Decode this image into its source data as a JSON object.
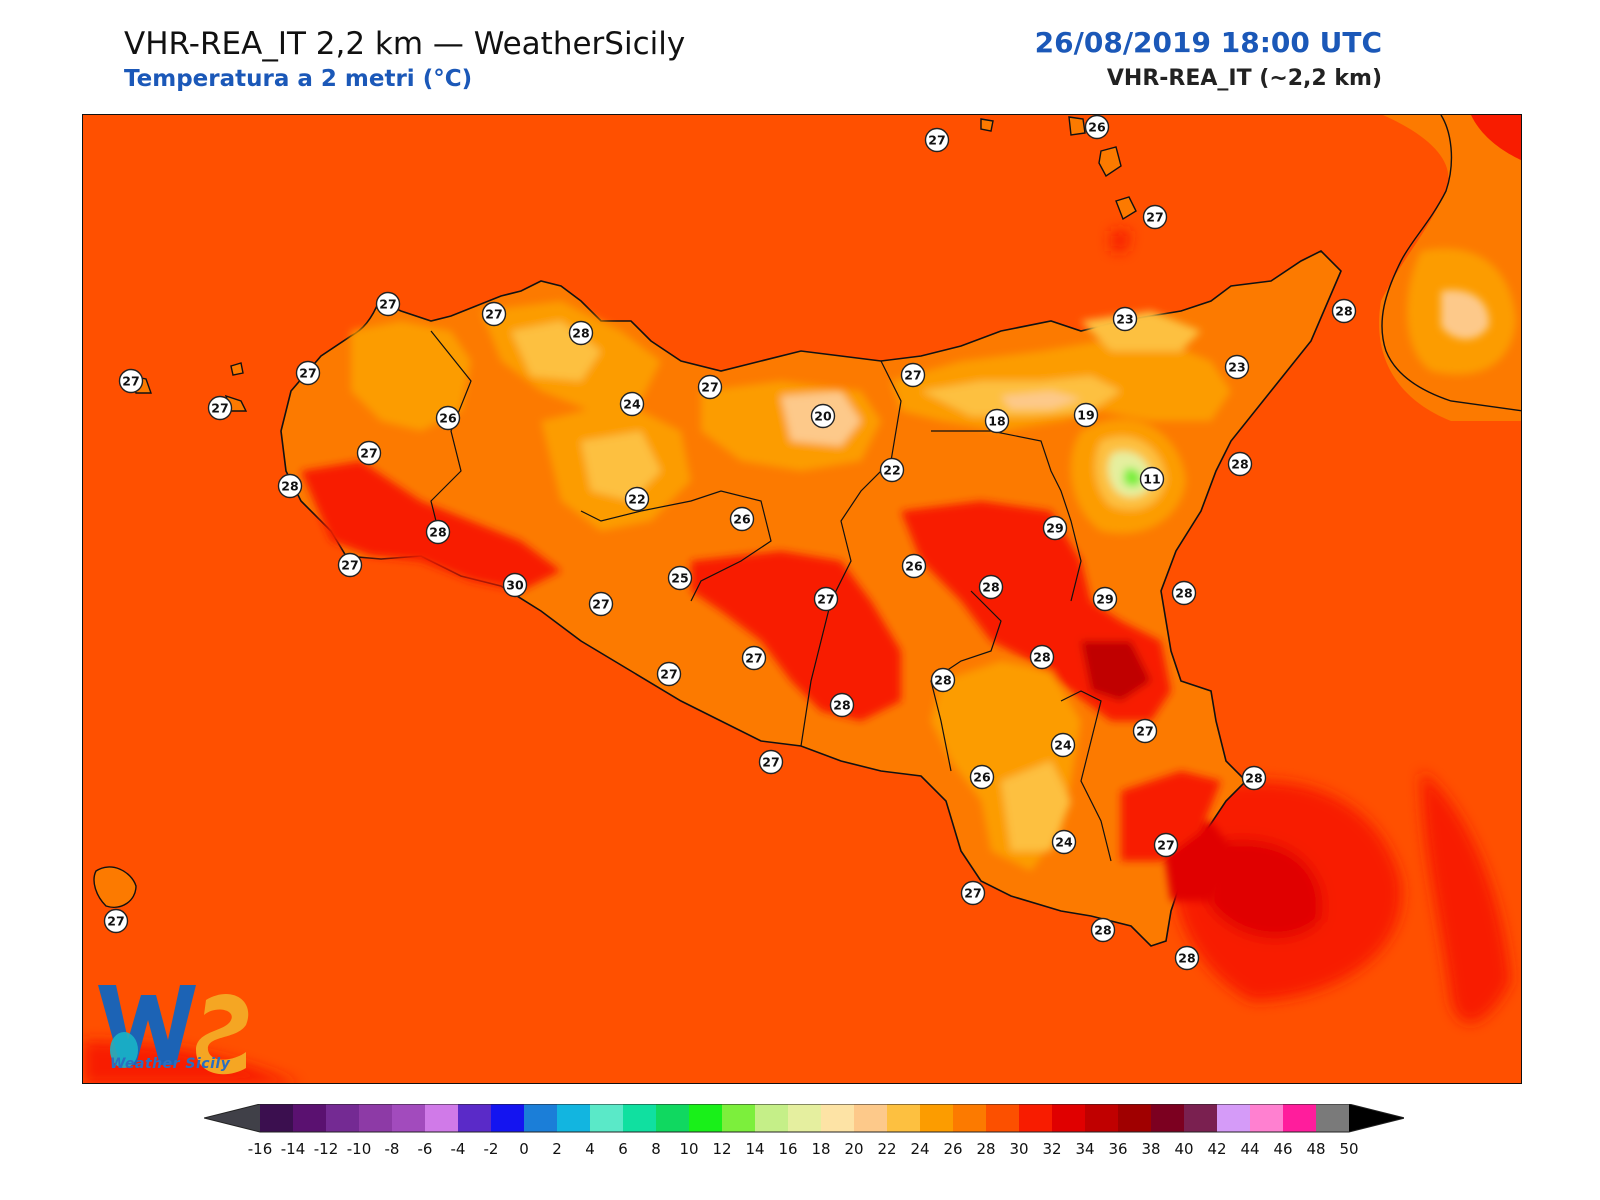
{
  "header": {
    "title": "VHR-REA_IT 2,2 km — WeatherSicily",
    "subtitle": "Temperatura a 2 metri (°C)",
    "datetime": "26/08/2019 18:00 UTC",
    "model": "VHR-REA_IT (~2,2 km)"
  },
  "logo": {
    "text": "Weather Sicily",
    "icon": "weathersicily-logo"
  },
  "colorbar": {
    "labels": [
      "-16",
      "-14",
      "-12",
      "-10",
      "-8",
      "-6",
      "-4",
      "-2",
      "0",
      "2",
      "4",
      "6",
      "8",
      "10",
      "12",
      "14",
      "16",
      "18",
      "20",
      "22",
      "24",
      "26",
      "28",
      "30",
      "32",
      "34",
      "36",
      "38",
      "40",
      "42",
      "44",
      "46",
      "48",
      "50"
    ],
    "colors": [
      "#3b0f4f",
      "#5a1170",
      "#742a93",
      "#8d3aa6",
      "#a24bbd",
      "#d07ae8",
      "#5a2ac8",
      "#1414f0",
      "#1b7ed8",
      "#12b5e0",
      "#5ae9c8",
      "#10e0a0",
      "#10d860",
      "#19f019",
      "#7cef3c",
      "#c5ef88",
      "#e5ef9f",
      "#fde3a5",
      "#fdc98a",
      "#fdc040",
      "#fc9c00",
      "#fc7a00",
      "#fc5000",
      "#f81c00",
      "#e00000",
      "#c00000",
      "#a00000",
      "#7c0020",
      "#7a2050",
      "#d59bf8",
      "#ff80d0",
      "#ff1d9c",
      "#7a7a7a",
      "#3a3a3a"
    ],
    "under_color": "#404048",
    "over_color": "#000000"
  },
  "station_values": [
    {
      "value": "27"
    },
    {
      "value": "26"
    },
    {
      "value": "27"
    },
    {
      "value": "27"
    },
    {
      "value": "27"
    },
    {
      "value": "28"
    },
    {
      "value": "27"
    },
    {
      "value": "27"
    },
    {
      "value": "26"
    },
    {
      "value": "27"
    },
    {
      "value": "27"
    },
    {
      "value": "28"
    },
    {
      "value": "24"
    },
    {
      "value": "27"
    },
    {
      "value": "20"
    },
    {
      "value": "27"
    },
    {
      "value": "23"
    },
    {
      "value": "23"
    },
    {
      "value": "28"
    },
    {
      "value": "18"
    },
    {
      "value": "19"
    },
    {
      "value": "22"
    },
    {
      "value": "11"
    },
    {
      "value": "28"
    },
    {
      "value": "22"
    },
    {
      "value": "28"
    },
    {
      "value": "26"
    },
    {
      "value": "29"
    },
    {
      "value": "27"
    },
    {
      "value": "30"
    },
    {
      "value": "25"
    },
    {
      "value": "27"
    },
    {
      "value": "26"
    },
    {
      "value": "28"
    },
    {
      "value": "29"
    },
    {
      "value": "28"
    },
    {
      "value": "27"
    },
    {
      "value": "27"
    },
    {
      "value": "28"
    },
    {
      "value": "28"
    },
    {
      "value": "28"
    },
    {
      "value": "27"
    },
    {
      "value": "24"
    },
    {
      "value": "27"
    },
    {
      "value": "26"
    },
    {
      "value": "28"
    },
    {
      "value": "27"
    },
    {
      "value": "24"
    },
    {
      "value": "27"
    },
    {
      "value": "27"
    },
    {
      "value": "28"
    },
    {
      "value": "28"
    },
    {
      "value": "27"
    }
  ]
}
